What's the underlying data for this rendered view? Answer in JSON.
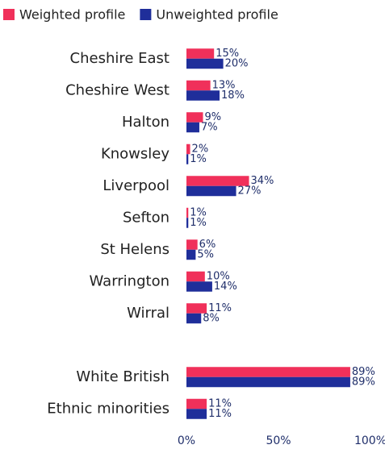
{
  "chart_data": {
    "type": "bar",
    "orientation": "horizontal",
    "categories": [
      "Cheshire East",
      "Cheshire West",
      "Halton",
      "Knowsley",
      "Liverpool",
      "Sefton",
      "St Helens",
      "Warrington",
      "Wirral",
      null,
      "White British",
      "Ethnic minorities"
    ],
    "series": [
      {
        "name": "Weighted profile",
        "color": "#f0305a",
        "values": [
          15,
          13,
          9,
          2,
          34,
          1,
          6,
          10,
          11,
          null,
          89,
          11
        ],
        "value_labels": [
          "15%",
          "13%",
          "9%",
          "2%",
          "34%",
          "1%",
          "6%",
          "10%",
          "11%",
          null,
          "89%",
          "11%"
        ]
      },
      {
        "name": "Unweighted profile",
        "color": "#1f2e9a",
        "values": [
          20,
          18,
          7,
          1,
          27,
          1,
          5,
          14,
          8,
          null,
          89,
          11
        ],
        "value_labels": [
          "20%",
          "18%",
          "7%",
          "1%",
          "27%",
          "1%",
          "5%",
          "14%",
          "8%",
          null,
          "89%",
          "11%"
        ]
      }
    ],
    "xlim": [
      0,
      100
    ],
    "xticks": [
      {
        "value": 0,
        "label": "0%"
      },
      {
        "value": 50,
        "label": "50%"
      },
      {
        "value": 100,
        "label": "100%"
      }
    ],
    "legend": "top-left"
  }
}
